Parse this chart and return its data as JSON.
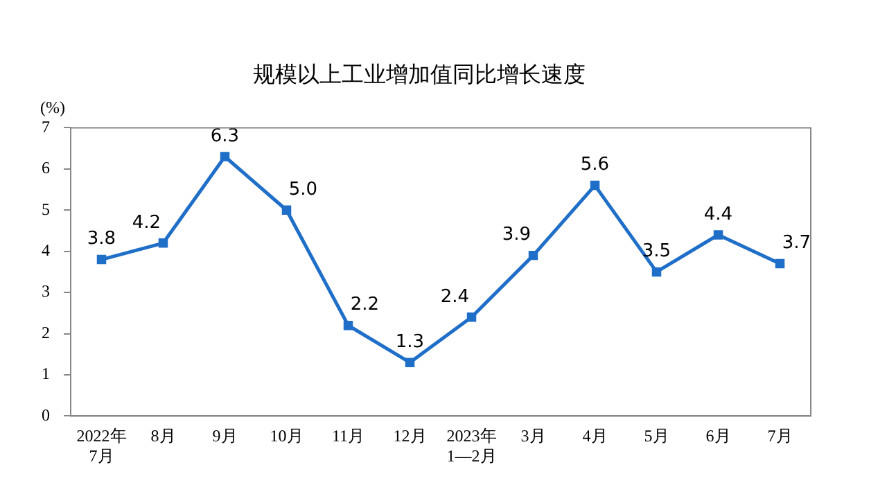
{
  "chart_data": {
    "type": "line",
    "title": "规模以上工业增加值同比增长速度",
    "ylabel": "(%)",
    "categories": [
      "2022年\n7月",
      "8月",
      "9月",
      "10月",
      "11月",
      "12月",
      "2023年\n1—2月",
      "3月",
      "4月",
      "5月",
      "6月",
      "7月"
    ],
    "series": [
      {
        "color": "#1f6fc8",
        "values": [
          3.8,
          4.2,
          6.3,
          5.0,
          2.2,
          1.3,
          2.4,
          3.9,
          5.6,
          3.5,
          4.4,
          3.7
        ],
        "value_labels": [
          "3.8",
          "4.2",
          "6.3",
          "5.0",
          "2.2",
          "1.3",
          "2.4",
          "3.9",
          "5.6",
          "3.5",
          "4.4",
          "3.7"
        ]
      }
    ],
    "ylim": [
      0,
      7
    ],
    "yticks": [
      0,
      1,
      2,
      3,
      4,
      5,
      6,
      7
    ],
    "grid": false,
    "legend": false,
    "marker": "square",
    "line_style": "solid"
  }
}
